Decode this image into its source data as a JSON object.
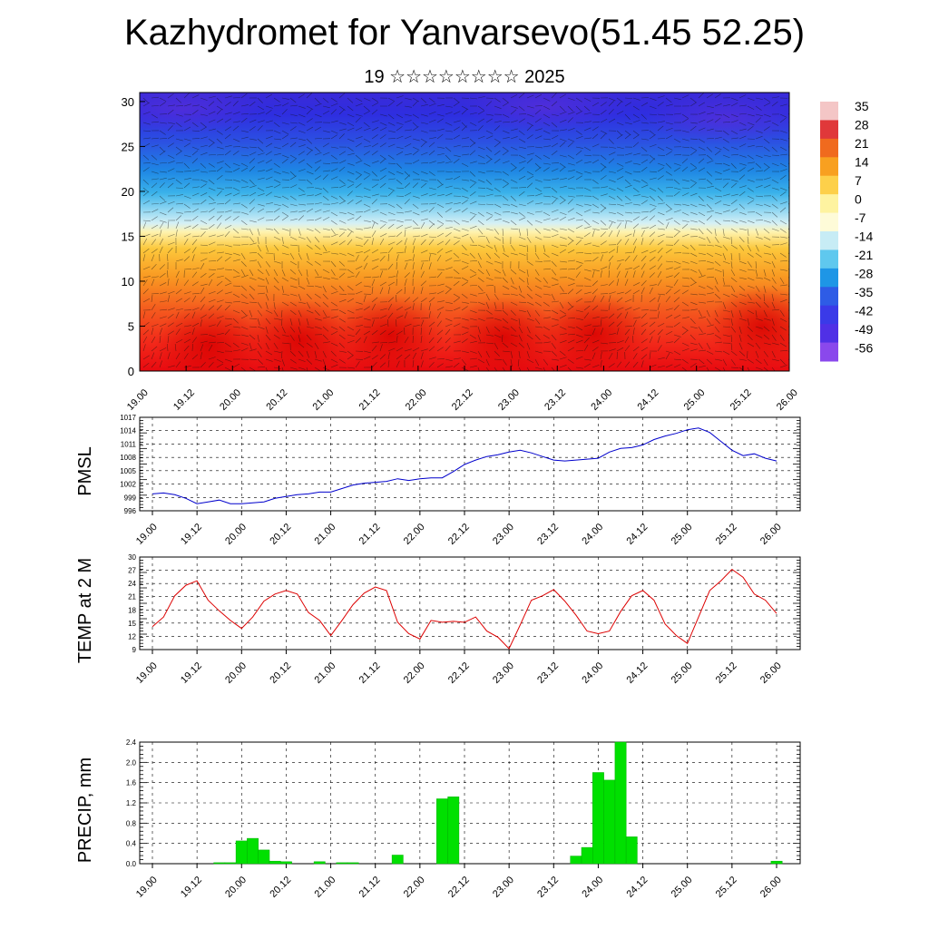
{
  "title": "Kazhydromet for Yanvarsevo(51.45 52.25)",
  "subtitle": "19 ☆☆☆☆☆☆☆☆ 2025",
  "time_labels": [
    "19.00",
    "19.12",
    "20.00",
    "20.12",
    "21.00",
    "21.12",
    "22.00",
    "22.12",
    "23.00",
    "23.12",
    "24.00",
    "24.12",
    "25.00",
    "25.12",
    "26.00"
  ],
  "chart_data": [
    {
      "type": "heatmap",
      "title": "Kazhydromet for Yanvarsevo(51.45 52.25)",
      "subtitle": "19 ☆☆☆☆☆☆☆☆ 2025",
      "x_ticks": [
        "19.00",
        "19.12",
        "20.00",
        "20.12",
        "21.00",
        "21.12",
        "22.00",
        "22.12",
        "23.00",
        "23.12",
        "24.00",
        "24.12",
        "25.00",
        "25.12",
        "26.00"
      ],
      "y_ticks": [
        0,
        5,
        10,
        15,
        20,
        25,
        30
      ],
      "ylim": [
        0,
        31
      ],
      "colorbar_labels": [
        "35",
        "28",
        "21",
        "14",
        "7",
        "0",
        "-7",
        "-14",
        "-21",
        "-28",
        "-35",
        "-42",
        "-49",
        "-56"
      ],
      "colorbar_colors": [
        "#f4c6c6",
        "#e0383a",
        "#f06a1e",
        "#f8a020",
        "#fdd04a",
        "#fef3a0",
        "#fefbd8",
        "#c7ecf5",
        "#5fc8ee",
        "#1e96e6",
        "#2e5ce6",
        "#3a3ae8",
        "#5030e6",
        "#8a48ec"
      ],
      "overlay": "wind barbs"
    },
    {
      "type": "line",
      "ylabel": "PMSL",
      "yticks": [
        996,
        999,
        1002,
        1005,
        1008,
        1011,
        1014,
        1017
      ],
      "ylim": [
        996,
        1017
      ],
      "color": "#0000cc",
      "y": [
        999.8,
        1000.0,
        999.6,
        998.8,
        997.6,
        998.0,
        998.4,
        997.6,
        997.6,
        997.8,
        998.0,
        998.8,
        999.2,
        999.6,
        999.8,
        1000.2,
        1000.2,
        1001.0,
        1001.8,
        1002.2,
        1002.4,
        1002.6,
        1003.2,
        1002.8,
        1003.2,
        1003.4,
        1003.4,
        1004.8,
        1006.4,
        1007.4,
        1008.2,
        1008.6,
        1009.2,
        1009.6,
        1009.0,
        1008.2,
        1007.4,
        1007.2,
        1007.4,
        1007.6,
        1007.8,
        1009.2,
        1010.0,
        1010.2,
        1010.8,
        1012.0,
        1012.8,
        1013.4,
        1014.2,
        1014.6,
        1013.6,
        1011.6,
        1009.6,
        1008.4,
        1008.8,
        1007.8,
        1007.2
      ],
      "x_ticks": [
        "19.00",
        "19.12",
        "20.00",
        "20.12",
        "21.00",
        "21.12",
        "22.00",
        "22.12",
        "23.00",
        "23.12",
        "24.00",
        "24.12",
        "25.00",
        "25.12",
        "26.00"
      ]
    },
    {
      "type": "line",
      "ylabel": "TEMP at 2 M",
      "yticks": [
        9,
        12,
        15,
        18,
        21,
        24,
        27,
        30
      ],
      "ylim": [
        9,
        30
      ],
      "color": "#dd0000",
      "y": [
        14.2,
        16.4,
        21.2,
        23.6,
        24.6,
        20.2,
        17.8,
        15.6,
        13.8,
        16.4,
        20.0,
        21.6,
        22.4,
        21.6,
        17.4,
        15.6,
        12.2,
        15.6,
        19.2,
        21.8,
        23.2,
        22.4,
        15.2,
        12.6,
        11.4,
        15.6,
        15.2,
        15.4,
        15.2,
        16.4,
        13.2,
        11.8,
        9.2,
        14.6,
        20.2,
        21.2,
        22.6,
        20.0,
        16.8,
        13.2,
        12.6,
        13.2,
        17.6,
        21.2,
        22.4,
        20.2,
        14.8,
        12.2,
        10.4,
        16.4,
        22.4,
        24.6,
        27.2,
        25.4,
        21.6,
        20.2,
        17.2
      ],
      "x_ticks": [
        "19.00",
        "19.12",
        "20.00",
        "20.12",
        "21.00",
        "21.12",
        "22.00",
        "22.12",
        "23.00",
        "23.12",
        "24.00",
        "24.12",
        "25.00",
        "25.12",
        "26.00"
      ]
    },
    {
      "type": "bar",
      "ylabel": "PRECIP, mm",
      "yticks": [
        "0.0",
        "0.4",
        "0.8",
        "1.2",
        "1.6",
        "2.0",
        "2.4"
      ],
      "ylim": [
        0,
        2.4
      ],
      "color": "#00e000",
      "values": [
        0,
        0,
        0,
        0,
        0,
        0,
        0.02,
        0.02,
        0.45,
        0.5,
        0.27,
        0.05,
        0.04,
        0,
        0,
        0.04,
        0,
        0.02,
        0.02,
        0,
        0,
        0,
        0.17,
        0,
        0,
        0,
        1.28,
        1.32,
        0,
        0,
        0,
        0,
        0,
        0,
        0,
        0,
        0,
        0,
        0.15,
        0.32,
        1.8,
        1.65,
        2.4,
        0.53,
        0,
        0,
        0,
        0,
        0,
        0,
        0,
        0,
        0,
        0,
        0,
        0,
        0.05
      ],
      "x_ticks": [
        "19.00",
        "19.12",
        "20.00",
        "20.12",
        "21.00",
        "21.12",
        "22.00",
        "22.12",
        "23.00",
        "23.12",
        "24.00",
        "24.12",
        "25.00",
        "25.12",
        "26.00"
      ]
    }
  ]
}
